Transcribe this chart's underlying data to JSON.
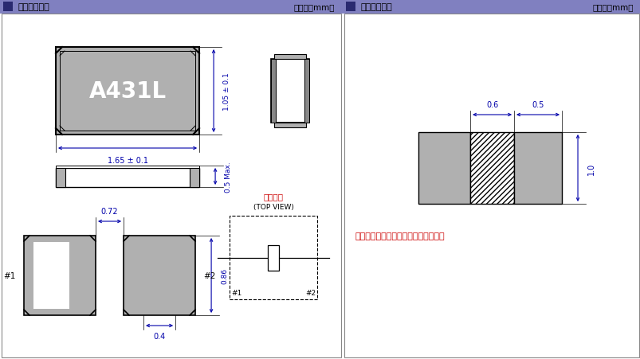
{
  "title_left": "外部尺寸规格",
  "title_right": "推荐焚盘尺寸",
  "unit_text": "（单位：mm）",
  "header_bg": "#8080c0",
  "header_dark": "#2a2a70",
  "header_text_color": "#000000",
  "panel_bg": "#ffffff",
  "gray_fill": "#b0b0b0",
  "dim_color": "#0000aa",
  "label_A431L": "A431L",
  "note_text": "＊请勿在阴影区域设计其它线路和焚盘",
  "note_color": "#cc0000",
  "inner_conn_title": "内部连接",
  "inner_conn_sub": "(TOP VIEW)",
  "dim_1_65": "1.65 ± 0.1",
  "dim_1_05": "1.05 ± 0.1",
  "dim_0_5": "0.5 Max.",
  "dim_0_72": "0.72",
  "dim_0_86": "0.86",
  "dim_0_4": "0.4",
  "dim_0_6": "0.6",
  "dim_0_5b": "0.5",
  "dim_1_0": "1.0",
  "label_1": "#1",
  "label_2": "#2"
}
